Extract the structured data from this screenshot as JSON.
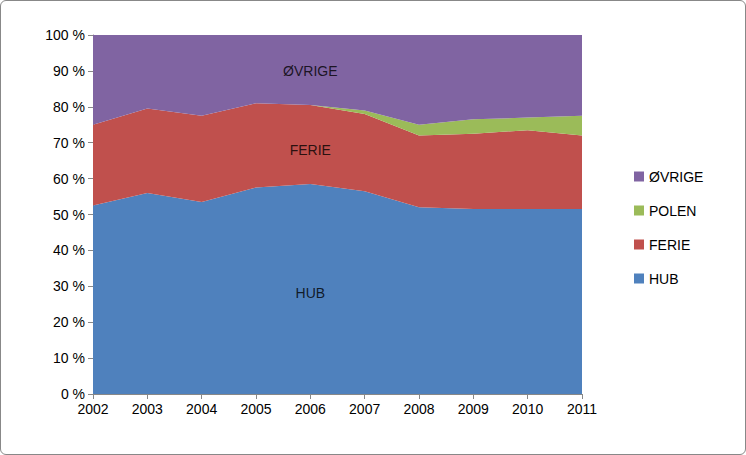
{
  "chart_data": {
    "type": "area",
    "stacked": true,
    "grid": false,
    "legend": "right",
    "categories": [
      "2002",
      "2003",
      "2004",
      "2005",
      "2006",
      "2007",
      "2008",
      "2009",
      "2010",
      "2011"
    ],
    "series": [
      {
        "name": "HUB",
        "color": "#4f81bd",
        "values": [
          52.5,
          56,
          53.5,
          57.5,
          58.5,
          56.5,
          52,
          51.5,
          51.5,
          51.5
        ]
      },
      {
        "name": "FERIE",
        "color": "#c0504d",
        "values": [
          22.5,
          23.5,
          24,
          23.5,
          22,
          21.5,
          20,
          21,
          22,
          20.5
        ]
      },
      {
        "name": "POLEN",
        "color": "#9bbb59",
        "values": [
          0,
          0,
          0,
          0,
          0,
          1,
          3,
          4,
          3.5,
          5.5
        ]
      },
      {
        "name": "ØVRIGE",
        "color": "#8064a2",
        "values": [
          25,
          20.5,
          22.5,
          19,
          19.5,
          21,
          25,
          23.5,
          23,
          22.5
        ]
      }
    ],
    "ylim": [
      0,
      100
    ],
    "yticks": [
      {
        "value": 0,
        "label": "0 %"
      },
      {
        "value": 10,
        "label": "10 %"
      },
      {
        "value": 20,
        "label": "20 %"
      },
      {
        "value": 30,
        "label": "30 %"
      },
      {
        "value": 40,
        "label": "40 %"
      },
      {
        "value": 50,
        "label": "50 %"
      },
      {
        "value": 60,
        "label": "60 %"
      },
      {
        "value": 70,
        "label": "70 %"
      },
      {
        "value": 80,
        "label": "80 %"
      },
      {
        "value": 90,
        "label": "90 %"
      },
      {
        "value": 100,
        "label": "100 %"
      }
    ],
    "annotations": [
      {
        "text": "ØVRIGE",
        "x": "2006",
        "y": 90
      },
      {
        "text": "FERIE",
        "x": "2006",
        "y": 68
      },
      {
        "text": "HUB",
        "x": "2006",
        "y": 28
      }
    ]
  }
}
